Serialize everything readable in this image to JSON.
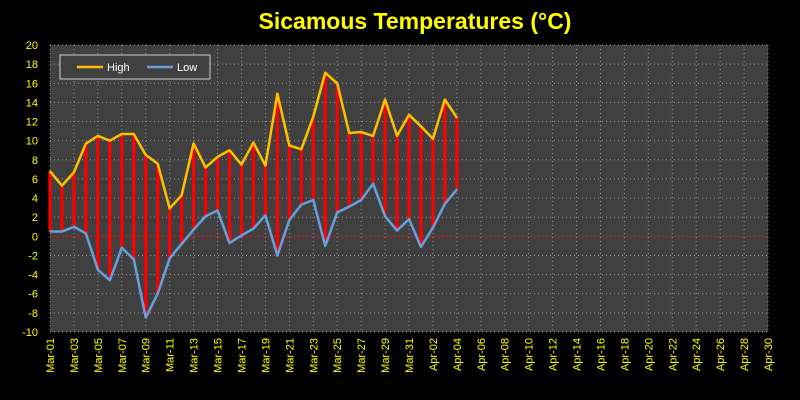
{
  "chart_data": {
    "type": "line",
    "title": "Sicamous Temperatures (°C)",
    "xlabel": "",
    "ylabel": "",
    "ylim": [
      -10,
      20
    ],
    "y_ticks": [
      20,
      18,
      16,
      14,
      12,
      10,
      8,
      6,
      4,
      2,
      0,
      -2,
      -4,
      -6,
      -8,
      -10
    ],
    "x_tick_labels": [
      "Mar-01",
      "Mar-03",
      "Mar-05",
      "Mar-07",
      "Mar-09",
      "Mar-11",
      "Mar-13",
      "Mar-15",
      "Mar-17",
      "Mar-19",
      "Mar-21",
      "Mar-23",
      "Mar-25",
      "Mar-27",
      "Mar-29",
      "Mar-31",
      "Apr-02",
      "Apr-04",
      "Apr-06",
      "Apr-08",
      "Apr-10",
      "Apr-12",
      "Apr-14",
      "Apr-16",
      "Apr-18",
      "Apr-20",
      "Apr-22",
      "Apr-24",
      "Apr-26",
      "Apr-28",
      "Apr-30"
    ],
    "grid": true,
    "legend_position": "top-left",
    "zero_line": {
      "value": 0,
      "color": "#ff0000"
    },
    "range_bar_color": "#ff0000",
    "background": "#404040",
    "series": [
      {
        "name": "High",
        "color": "#ffc000",
        "values": [
          6.8,
          5.3,
          6.7,
          9.7,
          10.5,
          10.0,
          10.7,
          10.7,
          8.5,
          7.6,
          2.9,
          4.3,
          9.7,
          7.2,
          8.3,
          9.0,
          7.5,
          9.8,
          7.4,
          14.9,
          9.5,
          9.1,
          12.5,
          17.1,
          16.0,
          10.8,
          10.9,
          10.5,
          14.3,
          10.5,
          12.7,
          11.5,
          10.2,
          14.3,
          12.4
        ]
      },
      {
        "name": "Low",
        "color": "#6a9fdc",
        "values": [
          0.5,
          0.5,
          1.0,
          0.3,
          -3.5,
          -4.6,
          -1.2,
          -2.4,
          -8.5,
          -6.0,
          -2.3,
          -0.8,
          0.7,
          2.1,
          2.7,
          -0.7,
          0.1,
          0.8,
          2.2,
          -2.0,
          1.7,
          3.3,
          3.8,
          -1.0,
          2.5,
          3.1,
          3.8,
          5.5,
          2.1,
          0.6,
          1.8,
          -1.1,
          0.9,
          3.4,
          4.9
        ]
      }
    ]
  }
}
